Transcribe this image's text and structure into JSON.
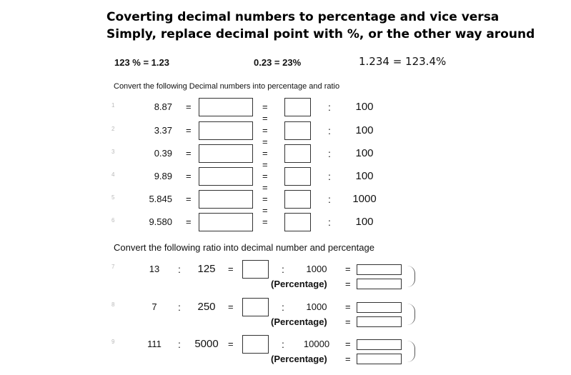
{
  "title": {
    "line1": "Coverting decimal numbers to percentage and vice versa",
    "line2": "Simply, replace decimal point with %, or the other way around"
  },
  "examples": [
    "123 % = 1.23",
    "0.23 = 23%",
    "1.234 = 123.4%"
  ],
  "section1": {
    "instruction": "Convert the following Decimal numbers into percentage and ratio",
    "rows": [
      {
        "num": "1",
        "value": "8.87",
        "ratio": "100"
      },
      {
        "num": "2",
        "value": "3.37",
        "ratio": "100"
      },
      {
        "num": "3",
        "value": "0.39",
        "ratio": "100"
      },
      {
        "num": "4",
        "value": "9.89",
        "ratio": "100"
      },
      {
        "num": "5",
        "value": "5.845",
        "ratio": "1000"
      },
      {
        "num": "6",
        "value": "9.580",
        "ratio": "100"
      }
    ]
  },
  "section2": {
    "instruction": "Convert the following ratio into decimal number and percentage",
    "percentage_label": "(Percentage)",
    "rows": [
      {
        "num": "7",
        "a": "13",
        "b": "125",
        "denom": "1000"
      },
      {
        "num": "8",
        "a": "7",
        "b": "250",
        "denom": "1000"
      },
      {
        "num": "9",
        "a": "111",
        "b": "5000",
        "denom": "10000"
      }
    ]
  },
  "symbols": {
    "equals": "=",
    "colon": ":"
  }
}
